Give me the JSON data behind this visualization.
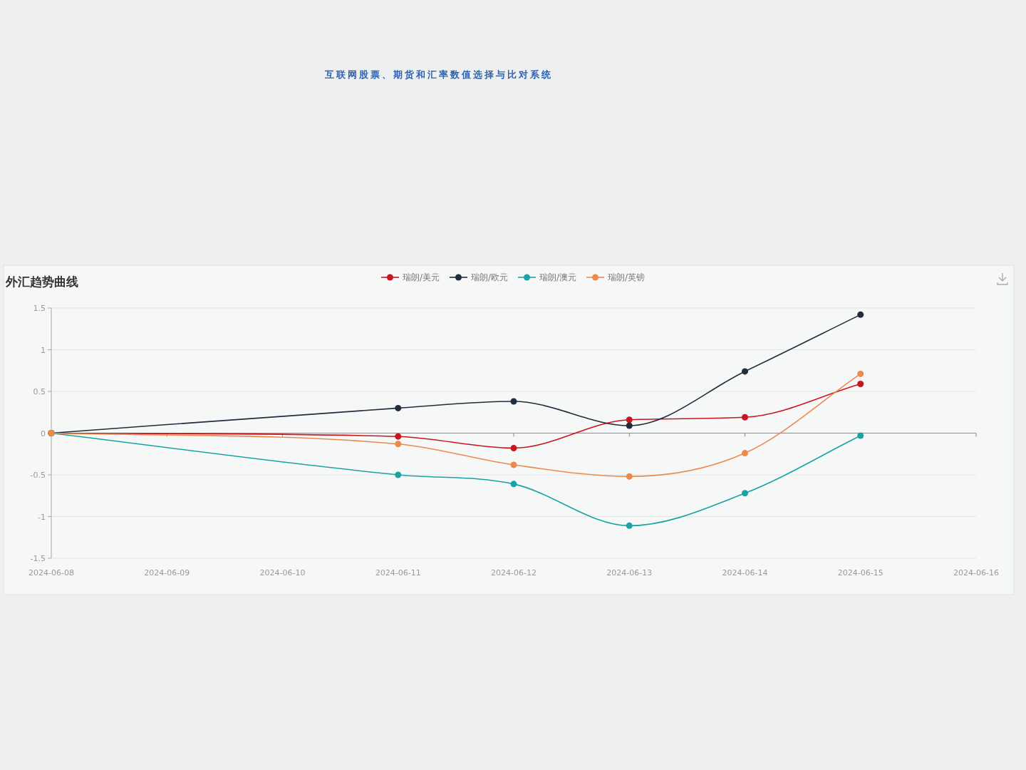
{
  "chart_data": {
    "type": "line",
    "title": "外汇趋势曲线",
    "annotations": [
      "互联网股票、期货和汇率数值选择与比对系统"
    ],
    "x": [
      "2024-06-08",
      "2024-06-11",
      "2024-06-12",
      "2024-06-13",
      "2024-06-14",
      "2024-06-15"
    ],
    "series": [
      {
        "name": "瑞朗/美元",
        "color": "#c9151e",
        "values": [
          0,
          -0.04,
          -0.18,
          0.16,
          0.19,
          0.59
        ]
      },
      {
        "name": "瑞朗/欧元",
        "color": "#1f2d3d",
        "values": [
          0,
          0.3,
          0.38,
          0.09,
          0.74,
          1.42
        ]
      },
      {
        "name": "瑞朗/澳元",
        "color": "#1ba3a3",
        "values": [
          0,
          -0.5,
          -0.61,
          -1.11,
          -0.72,
          -0.03
        ]
      },
      {
        "name": "瑞朗/英镑",
        "color": "#ec8a4e",
        "values": [
          0,
          -0.13,
          -0.38,
          -0.52,
          -0.24,
          0.71
        ]
      }
    ],
    "xlim": [
      "2024-06-08",
      "2024-06-16"
    ],
    "xticks": [
      "2024-06-08",
      "2024-06-09",
      "2024-06-10",
      "2024-06-11",
      "2024-06-12",
      "2024-06-13",
      "2024-06-14",
      "2024-06-15",
      "2024-06-16"
    ],
    "ylim": [
      -1.5,
      1.5
    ],
    "yticks": [
      -1.5,
      -1,
      -0.5,
      0,
      0.5,
      1,
      1.5
    ],
    "grid": "y",
    "legend": "top",
    "marker": "circle",
    "line_style": "solid"
  }
}
